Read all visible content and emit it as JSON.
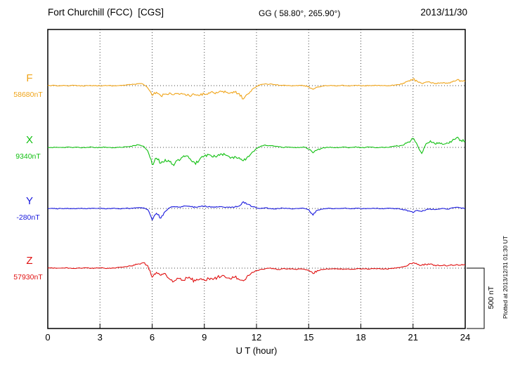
{
  "header": {
    "station": "Fort Churchill (FCC)  [CGS]",
    "gg_coords": "GG ( 58.80°, 265.90°)",
    "date": "2013/11/30"
  },
  "axis": {
    "xlabel": "U T (hour)",
    "ticks": [
      0,
      3,
      6,
      9,
      12,
      15,
      18,
      21,
      24
    ],
    "xmin": 0,
    "xmax": 24
  },
  "scale_bar": {
    "label": "500 nT",
    "nT": 500
  },
  "footer_note": "Plotted at 2013/12/31 01:30 UT",
  "chart_data": {
    "type": "line",
    "title": "Fort Churchill (FCC) [CGS] magnetogram 2013/11/30",
    "xlabel": "U T (hour)",
    "x_range": [
      0,
      24
    ],
    "x_step_hours": 0.25,
    "scale_nT_per_division": 500,
    "grid": "dotted vertical every 3 h, dotted horizontal baseline per component",
    "series": [
      {
        "name": "F",
        "baseline_label": "58680nT",
        "baseline_nT": 58680,
        "color": "#f0a418",
        "deviation_nT": [
          0,
          2,
          -2,
          1,
          0,
          -1,
          2,
          0,
          -2,
          1,
          0,
          2,
          -1,
          0,
          1,
          -2,
          0,
          2,
          5,
          8,
          12,
          18,
          10,
          -20,
          -80,
          -55,
          -85,
          -70,
          -60,
          -75,
          -65,
          -70,
          -80,
          -85,
          -75,
          -80,
          -70,
          -60,
          -55,
          -60,
          -50,
          -55,
          -60,
          -55,
          -65,
          -110,
          -70,
          -30,
          -5,
          10,
          15,
          12,
          8,
          5,
          2,
          0,
          -2,
          0,
          2,
          0,
          -10,
          -30,
          -12,
          -5,
          0,
          2,
          -2,
          0,
          3,
          -2,
          0,
          2,
          0,
          -2,
          2,
          0,
          3,
          0,
          -2,
          2,
          5,
          10,
          20,
          40,
          55,
          35,
          20,
          30,
          25,
          15,
          20,
          25,
          20,
          30,
          45,
          40,
          35
        ]
      },
      {
        "name": "X",
        "baseline_label": "9340nT",
        "baseline_nT": 9340,
        "color": "#10c010",
        "deviation_nT": [
          0,
          -3,
          2,
          0,
          -2,
          3,
          0,
          2,
          -2,
          0,
          3,
          -2,
          0,
          2,
          0,
          -3,
          2,
          0,
          5,
          10,
          15,
          20,
          10,
          -30,
          -140,
          -90,
          -130,
          -100,
          -120,
          -150,
          -100,
          -80,
          -70,
          -110,
          -140,
          -95,
          -70,
          -60,
          -80,
          -70,
          -55,
          -65,
          -90,
          -75,
          -85,
          -110,
          -75,
          -40,
          -10,
          10,
          20,
          15,
          10,
          5,
          0,
          3,
          0,
          -3,
          0,
          2,
          -15,
          -45,
          -20,
          -8,
          0,
          3,
          -3,
          0,
          4,
          -2,
          0,
          3,
          -2,
          0,
          3,
          0,
          -3,
          2,
          0,
          5,
          10,
          15,
          25,
          45,
          75,
          20,
          -50,
          30,
          55,
          30,
          40,
          25,
          35,
          55,
          80,
          60,
          50
        ]
      },
      {
        "name": "Y",
        "baseline_label": "-280nT",
        "baseline_nT": -280,
        "color": "#1818dd",
        "deviation_nT": [
          0,
          2,
          -2,
          0,
          1,
          -1,
          0,
          2,
          0,
          -2,
          1,
          0,
          2,
          -1,
          0,
          1,
          0,
          -2,
          2,
          0,
          5,
          8,
          5,
          -10,
          -95,
          -40,
          -80,
          -25,
          5,
          15,
          10,
          15,
          20,
          15,
          10,
          15,
          20,
          15,
          10,
          12,
          15,
          10,
          8,
          12,
          20,
          55,
          35,
          15,
          5,
          0,
          5,
          0,
          -5,
          0,
          3,
          0,
          -3,
          0,
          2,
          0,
          -10,
          -55,
          -15,
          -5,
          0,
          2,
          -2,
          0,
          2,
          0,
          -2,
          2,
          0,
          -2,
          0,
          2,
          0,
          -2,
          2,
          0,
          0,
          -5,
          -10,
          -20,
          -35,
          -15,
          -25,
          -10,
          -5,
          -10,
          -5,
          0,
          -5,
          5,
          10,
          5,
          0
        ]
      },
      {
        "name": "Z",
        "baseline_label": "57930nT",
        "baseline_nT": 57930,
        "color": "#e01010",
        "deviation_nT": [
          0,
          2,
          -2,
          0,
          2,
          0,
          -2,
          1,
          0,
          2,
          -1,
          0,
          2,
          0,
          -2,
          2,
          5,
          8,
          12,
          18,
          25,
          35,
          45,
          20,
          -75,
          -35,
          -60,
          -45,
          -90,
          -110,
          -85,
          -100,
          -80,
          -95,
          -105,
          -90,
          -100,
          -85,
          -95,
          -75,
          -65,
          -80,
          -90,
          -75,
          -95,
          -105,
          -60,
          -35,
          -20,
          -10,
          -5,
          0,
          -5,
          -10,
          -5,
          -8,
          -5,
          -10,
          -5,
          -8,
          -15,
          -45,
          -20,
          -10,
          -8,
          -5,
          -8,
          -5,
          -10,
          -5,
          -8,
          -4,
          -8,
          -5,
          -8,
          -5,
          -3,
          -5,
          -8,
          -4,
          0,
          5,
          15,
          30,
          45,
          30,
          25,
          30,
          35,
          25,
          20,
          25,
          20,
          25,
          30,
          25,
          30
        ]
      }
    ]
  }
}
